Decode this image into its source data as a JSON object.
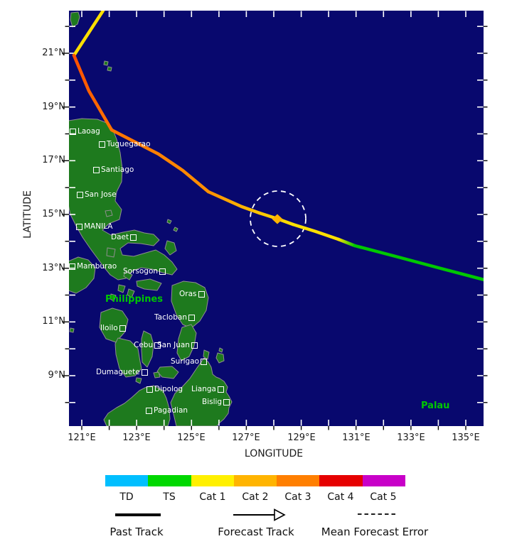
{
  "axes": {
    "y_title": "LATITUDE",
    "x_title": "LONGITUDE",
    "lat_ticks": [
      "21°N",
      "19°N",
      "17°N",
      "15°N",
      "13°N",
      "11°N",
      "9°N"
    ],
    "lon_ticks": [
      "121°E",
      "123°E",
      "125°E",
      "127°E",
      "129°E",
      "131°E",
      "133°E",
      "135°E"
    ]
  },
  "map": {
    "colors": {
      "ocean": "#08086E",
      "land": "#1E7A1E",
      "coastline": "#8F8F8F",
      "city_label": "#FFFFFF",
      "region_label": "#00C800"
    },
    "region_labels": {
      "philippines": "Philippines",
      "palau": "Palau"
    },
    "cities": [
      {
        "label": "Laoag"
      },
      {
        "label": "Tuguegarao"
      },
      {
        "label": "Santiago"
      },
      {
        "label": "San Jose"
      },
      {
        "label": "MANILA"
      },
      {
        "label": "Daet"
      },
      {
        "label": "Mamburao"
      },
      {
        "label": "Sorsogon"
      },
      {
        "label": "Oras"
      },
      {
        "label": "Tacloban"
      },
      {
        "label": "Iloilo"
      },
      {
        "label": "Cebu"
      },
      {
        "label": "San Juan"
      },
      {
        "label": "Surigao"
      },
      {
        "label": "Dumaguete"
      },
      {
        "label": "Dipolog"
      },
      {
        "label": "Lianga"
      },
      {
        "label": "Bislig"
      },
      {
        "label": "Pagadian"
      }
    ]
  },
  "track": {
    "storm_position_marker": {
      "shape": "diamond",
      "color": "#FFB400"
    },
    "forecast_error_circle": {
      "stroke": "#FFFFFF",
      "style": "dashed"
    },
    "segment_colors_along_track": [
      "#FFE000",
      "#FF4F00",
      "#FF7300",
      "#FF9000",
      "#FFC600",
      "#FFE000",
      "#00C800"
    ]
  },
  "legend": {
    "categories": [
      {
        "label": "TD",
        "color": "#00BFFF"
      },
      {
        "label": "TS",
        "color": "#00D800"
      },
      {
        "label": "Cat 1",
        "color": "#FFF000"
      },
      {
        "label": "Cat 2",
        "color": "#FFB400"
      },
      {
        "label": "Cat 3",
        "color": "#FF7F00"
      },
      {
        "label": "Cat 4",
        "color": "#E60000"
      },
      {
        "label": "Cat 5",
        "color": "#C800C8"
      }
    ],
    "past_track_label": "Past Track",
    "forecast_track_label": "Forecast Track",
    "mean_forecast_error_label": "Mean Forecast Error"
  }
}
